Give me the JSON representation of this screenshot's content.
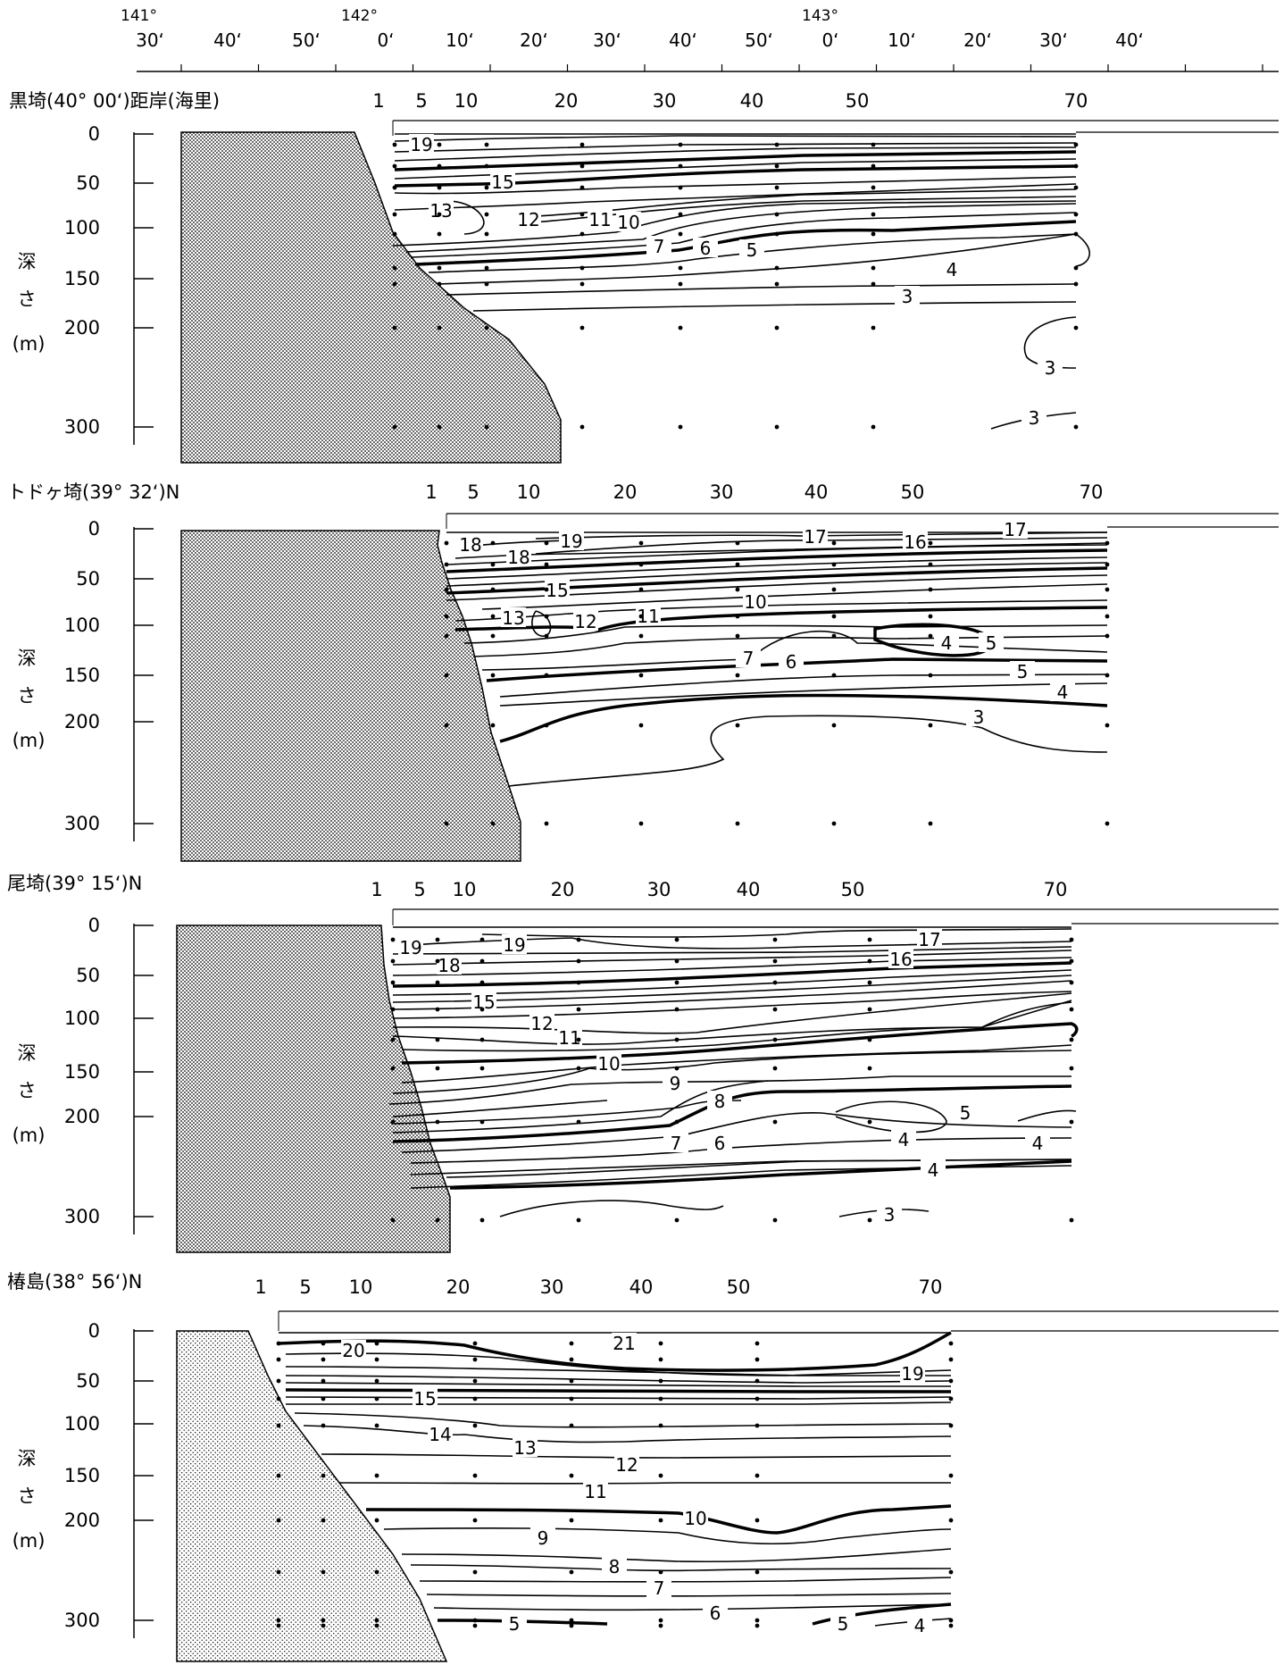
{
  "longitude_axis": {
    "top_labels": [
      "141°",
      "142°",
      "143°"
    ],
    "minute_labels": [
      "30‘",
      "40‘",
      "50‘",
      "0‘",
      "10‘",
      "20‘",
      "30‘",
      "40‘",
      "50‘",
      "0‘",
      "10‘",
      "20‘",
      "30‘",
      "40‘"
    ]
  },
  "sections": [
    {
      "title": "黒埼(40° 00‘)距岸(海里)",
      "distance_labels": [
        "1",
        "5",
        "10",
        "20",
        "30",
        "40",
        "50",
        "70"
      ],
      "depth_labels": [
        "0",
        "50",
        "100",
        "150",
        "200",
        "300"
      ],
      "axis_label": [
        "深",
        "さ",
        "(m)"
      ],
      "contour_labels": [
        "19",
        "15",
        "13",
        "12",
        "11",
        "10",
        "7",
        "6",
        "5",
        "4",
        "3",
        "3",
        "3"
      ]
    },
    {
      "title": "トドヶ埼(39° 32‘)N",
      "distance_labels": [
        "1",
        "5",
        "10",
        "20",
        "30",
        "40",
        "50",
        "70"
      ],
      "depth_labels": [
        "0",
        "50",
        "100",
        "150",
        "200",
        "300"
      ],
      "axis_label": [
        "深",
        "さ",
        "(m)"
      ],
      "contour_labels": [
        "18",
        "19",
        "18",
        "17",
        "16",
        "17",
        "15",
        "13",
        "12",
        "11",
        "10",
        "7",
        "6",
        "4",
        "5",
        "5",
        "4",
        "3"
      ]
    },
    {
      "title": "尾埼(39° 15‘)N",
      "distance_labels": [
        "1",
        "5",
        "10",
        "20",
        "30",
        "40",
        "50",
        "70"
      ],
      "depth_labels": [
        "0",
        "50",
        "100",
        "150",
        "200",
        "300"
      ],
      "axis_label": [
        "深",
        "さ",
        "(m)"
      ],
      "contour_labels": [
        "19",
        "19",
        "17",
        "18",
        "16",
        "15",
        "12",
        "11",
        "10",
        "9",
        "8",
        "7",
        "6",
        "5",
        "4",
        "4",
        "4",
        "3"
      ]
    },
    {
      "title": "椿島(38° 56‘)N",
      "distance_labels": [
        "1",
        "5",
        "10",
        "20",
        "30",
        "40",
        "50",
        "70"
      ],
      "depth_labels": [
        "0",
        "50",
        "100",
        "150",
        "200",
        "300"
      ],
      "axis_label": [
        "深",
        "さ",
        "(m)"
      ],
      "contour_labels": [
        "20",
        "21",
        "19",
        "15",
        "14",
        "13",
        "12",
        "11",
        "10",
        "9",
        "8",
        "7",
        "6",
        "5",
        "5",
        "4"
      ]
    }
  ]
}
